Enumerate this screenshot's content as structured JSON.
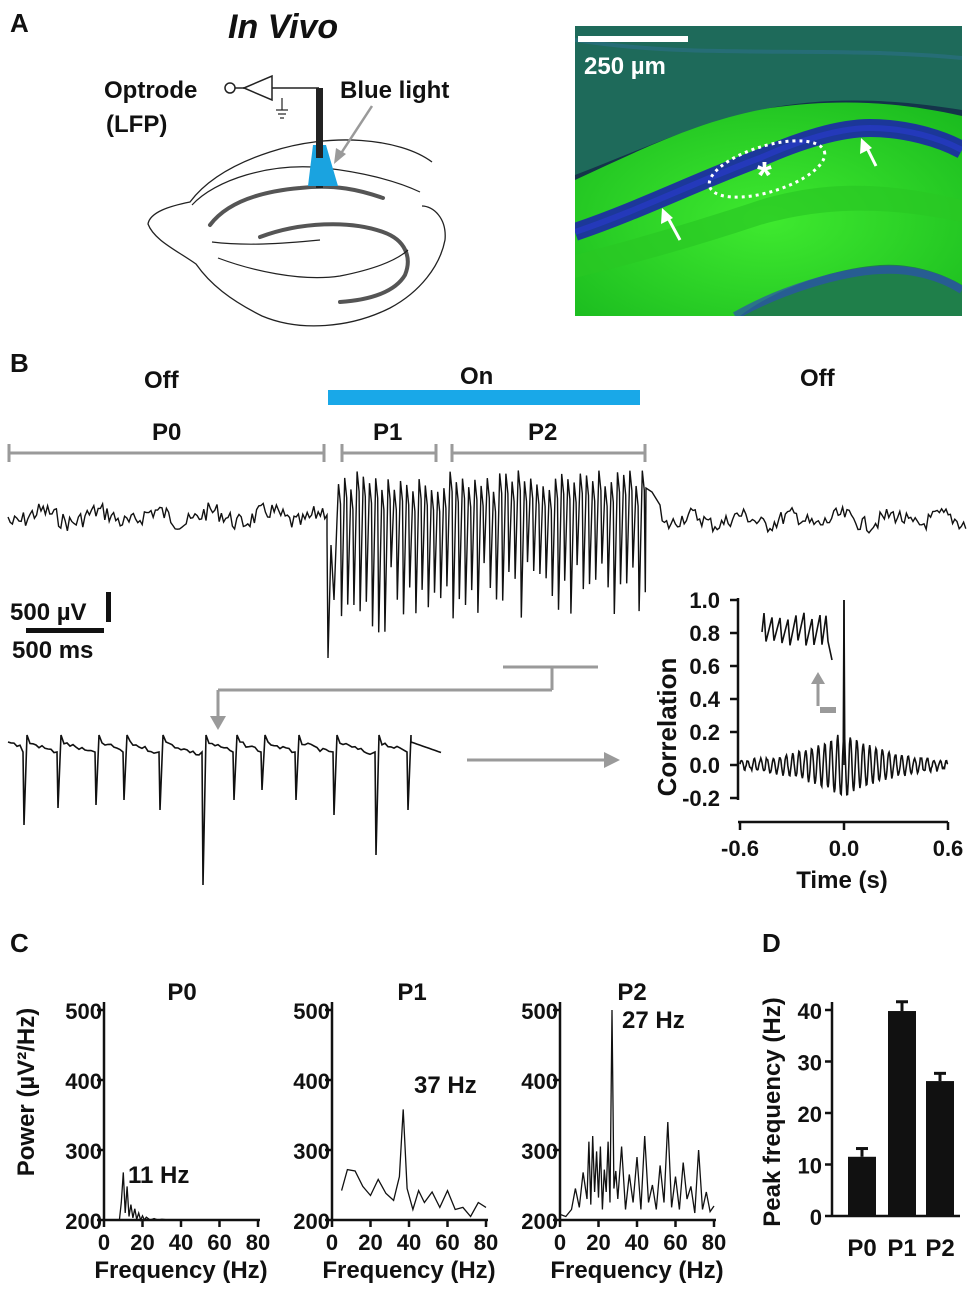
{
  "panel_labels": {
    "a": "A",
    "b": "B",
    "c": "C",
    "d": "D"
  },
  "panel_a": {
    "title": "In Vivo",
    "optrode_line1": "Optrode",
    "optrode_line2": "(LFP)",
    "blue_light": "Blue light",
    "scale_bar": "250 µm",
    "asterisk": "*",
    "colors": {
      "light": "#1aa3e0",
      "tissue": "#22d61f",
      "nuclear": "#1b2fa0"
    }
  },
  "panel_b": {
    "off_left": "Off",
    "on": "On",
    "off_right": "Off",
    "period_p0": "P0",
    "period_p1": "P1",
    "period_p2": "P2",
    "scale_voltage": "500 µV",
    "scale_time": "500 ms",
    "colors": {
      "light_bar": "#19a8e8",
      "bracket": "#9a9a9a"
    }
  },
  "chart_data": [
    {
      "type": "line",
      "panel": "B-inset",
      "xlabel": "Time (s)",
      "ylabel": "Correlation",
      "xlim": [
        -0.6,
        0.6
      ],
      "ylim": [
        -0.2,
        1.0
      ],
      "xticks": [
        "-0.6",
        "0.0",
        "0.6"
      ],
      "yticks": [
        "-0.2",
        "0.0",
        "0.2",
        "0.4",
        "0.6",
        "0.8",
        "1.0"
      ],
      "peak": {
        "x": 0.0,
        "y": 1.0
      },
      "oscillation_period_s": 0.037
    },
    {
      "type": "line",
      "panel": "C",
      "title": "P0",
      "xlabel": "Frequency (Hz)",
      "ylabel": "Power (µV²/Hz)",
      "xlim": [
        0,
        80
      ],
      "ylim": [
        200,
        500
      ],
      "xticks": [
        "0",
        "20",
        "40",
        "60",
        "80"
      ],
      "yticks": [
        "200",
        "300",
        "400",
        "500"
      ],
      "annotation": "11 Hz",
      "x": [
        8,
        9,
        10,
        11,
        12,
        13,
        14,
        15,
        16,
        17,
        18,
        19,
        20,
        21,
        22,
        24,
        26,
        28,
        30,
        34,
        40,
        50,
        60,
        70,
        80
      ],
      "y": [
        200,
        225,
        268,
        210,
        248,
        205,
        222,
        203,
        216,
        201,
        210,
        200,
        206,
        200,
        204,
        200,
        202,
        200,
        201,
        200,
        200,
        200,
        200,
        200,
        200
      ]
    },
    {
      "type": "line",
      "panel": "C",
      "title": "P1",
      "xlabel": "Frequency (Hz)",
      "ylabel": "",
      "xlim": [
        0,
        80
      ],
      "ylim": [
        200,
        500
      ],
      "xticks": [
        "0",
        "20",
        "40",
        "60",
        "80"
      ],
      "yticks": [
        "200",
        "300",
        "400",
        "500"
      ],
      "annotation": "37 Hz",
      "x": [
        5,
        8,
        12,
        16,
        20,
        24,
        28,
        32,
        35,
        37,
        39,
        42,
        45,
        48,
        52,
        56,
        60,
        64,
        68,
        72,
        76,
        80
      ],
      "y": [
        242,
        272,
        270,
        248,
        235,
        258,
        238,
        228,
        262,
        358,
        245,
        215,
        242,
        225,
        240,
        218,
        242,
        215,
        218,
        205,
        225,
        218
      ]
    },
    {
      "type": "line",
      "panel": "C",
      "title": "P2",
      "xlabel": "Frequency (Hz)",
      "ylabel": "",
      "xlim": [
        0,
        80
      ],
      "ylim": [
        200,
        500
      ],
      "xticks": [
        "0",
        "20",
        "40",
        "60",
        "80"
      ],
      "yticks": [
        "200",
        "300",
        "400",
        "500"
      ],
      "annotation": "27 Hz",
      "x": [
        0,
        3,
        6,
        8,
        10,
        12,
        14,
        15,
        16,
        17,
        18,
        19,
        20,
        21,
        22,
        23,
        24,
        25,
        26,
        27,
        28,
        29,
        30,
        32,
        34,
        36,
        38,
        40,
        42,
        44,
        46,
        48,
        50,
        52,
        54,
        56,
        58,
        60,
        62,
        64,
        66,
        68,
        70,
        72,
        74,
        76,
        78,
        80
      ],
      "y": [
        208,
        205,
        215,
        245,
        218,
        268,
        230,
        312,
        222,
        320,
        240,
        298,
        232,
        305,
        215,
        272,
        240,
        312,
        225,
        500,
        245,
        270,
        230,
        305,
        215,
        265,
        225,
        290,
        215,
        320,
        225,
        250,
        215,
        278,
        225,
        340,
        218,
        262,
        215,
        282,
        230,
        248,
        210,
        300,
        215,
        240,
        212,
        220
      ]
    },
    {
      "type": "bar",
      "panel": "D",
      "categories": [
        "P0",
        "P1",
        "P2"
      ],
      "values": [
        11.5,
        39.8,
        26.2
      ],
      "errors": [
        1.6,
        1.8,
        1.5
      ],
      "ylabel": "Peak frequency (Hz)",
      "ylim": [
        0,
        40
      ],
      "yticks": [
        "0",
        "10",
        "20",
        "30",
        "40"
      ]
    }
  ]
}
